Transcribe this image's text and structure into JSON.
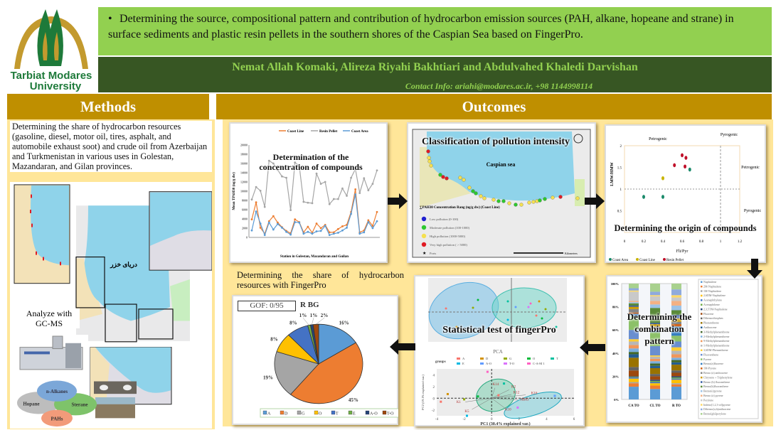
{
  "header": {
    "logo_text_line1": "Tarbiat Modares",
    "logo_text_line2": "University",
    "title": "Determining the source, compositional pattern and contribution of hydrocarbon emission sources (PAH, alkane, hopeane and strane) in surface sediments and plastic resin pellets in the southern shores of the Caspian Sea based on FingerPro.",
    "authors": "Nemat Allah Komaki, Alireza Riyahi Bakhtiari and Abdulvahed Khaledi Darvishan",
    "contact": "Contact Info: ariahi@modares.ac.ir, +98 1144998114"
  },
  "colors": {
    "title_bg": "#92d050",
    "author_bg": "#375623",
    "section_bg": "#bf8f00",
    "body_bg": "#ffe699"
  },
  "methods": {
    "heading": "Methods",
    "text": "Determining the share of hydrocarbon resources (gasoline, diesel, motor oil, tires, asphalt, and automobile exhaust soot) and crude oil from Azerbaijan and Turkmenistan in various uses in Golestan, Mazandaran, and Gilan provinces.",
    "gcms_label": "Analyze with GC-MS",
    "venn": [
      "n-Alkanes",
      "Hopane",
      "Sterane",
      "PAHs"
    ],
    "map_sea_label": "دریای خزر"
  },
  "outcomes": {
    "heading": "Outcomes",
    "concentration": {
      "caption": "Determination of the concentration of compounds",
      "chart_data": {
        "type": "line",
        "ylabel": "Mean TPAH30 (ng/g dw)",
        "xlabel": "Station in Golestan, Mazandaran and Guilan",
        "ylim": [
          0,
          20000
        ],
        "yticks": [
          0,
          2000,
          4000,
          6000,
          8000,
          10000,
          12000,
          14000,
          16000,
          18000,
          20000
        ],
        "legend_position": "top",
        "series": [
          {
            "name": "Coast Line",
            "color": "#ed7d31",
            "values": [
              3900,
              7600,
              2100,
              800,
              3500,
              4600,
              3200,
              2200,
              1400,
              900,
              3900,
              3300,
              1100,
              2300,
              1000,
              3000,
              2000,
              2700,
              1100,
              1100,
              1800,
              2400,
              2700,
              5500,
              10400,
              1100,
              1500,
              3700,
              2500,
              5500
            ]
          },
          {
            "name": "Resin Pellet",
            "color": "#a5a5a5",
            "values": [
              8200,
              10900,
              10100,
              6600,
              16600,
              16000,
              14600,
              13200,
              12900,
              5900,
              16200,
              15500,
              7700,
              7500,
              7400,
              13800,
              11600,
              12000,
              7200,
              8300,
              8300,
              10600,
              9000,
              12900,
              14800,
              9600,
              12800,
              10200,
              11600,
              14500
            ]
          },
          {
            "name": "Coast Area",
            "color": "#5b9bd5",
            "values": [
              1500,
              5600,
              3000,
              500,
              3200,
              1700,
              2900,
              2100,
              1200,
              600,
              3300,
              3200,
              800,
              1200,
              800,
              1300,
              1400,
              2500,
              500,
              800,
              1000,
              1500,
              2100,
              5100,
              9300,
              800,
              1100,
              3300,
              2000,
              3500
            ]
          }
        ]
      }
    },
    "pollution_map": {
      "caption": "Classification of pollution intensity",
      "sea_label": "Caspian sea",
      "legend_title": "∑PAH30 Concentration Rang (ng/g dw) (Coast Line)",
      "legend": [
        {
          "label": "Low pollution (0-100)",
          "color": "#1f1fd0"
        },
        {
          "label": "Moderate pollution (100-1000)",
          "color": "#2ec82e"
        },
        {
          "label": "High pollution (1000-5000)",
          "color": "#f5e050"
        },
        {
          "label": "Very high pollution ( > 5000)",
          "color": "#e01b24"
        },
        {
          "label": "Ports",
          "color": "#111111"
        }
      ],
      "scale_label": "Kilometers"
    },
    "origin": {
      "caption": "Determining the origin of compounds",
      "chart_data": {
        "type": "scatter",
        "xlabel": "Flt/Pyr",
        "ylabel": "LMW/HMW",
        "xlim": [
          0,
          1.2
        ],
        "ylim": [
          0,
          2
        ],
        "xticks": [
          0,
          0.2,
          0.4,
          0.6,
          0.8,
          1,
          1.2
        ],
        "yticks": [
          0.5,
          1,
          1.5,
          2
        ],
        "region_labels": [
          "Petrogenic",
          "Pyrogenic",
          "Petrogenic",
          "Pyrogenic"
        ],
        "legend_position": "bottom",
        "series": [
          {
            "name": "Coast Area",
            "color": "#1a8a6a",
            "points": [
              [
                0.2,
                0.82
              ],
              [
                0.4,
                0.82
              ],
              [
                0.68,
                1.45
              ]
            ]
          },
          {
            "name": "Coast Line",
            "color": "#c8b400",
            "points": [
              [
                0.4,
                1.25
              ]
            ]
          },
          {
            "name": "Resin Pellet",
            "color": "#c0102a",
            "points": [
              [
                0.52,
                1.55
              ],
              [
                0.6,
                1.78
              ],
              [
                0.64,
                1.72
              ],
              [
                0.63,
                1.52
              ]
            ]
          }
        ]
      }
    },
    "combination": {
      "caption": "Determining the combination pattern",
      "chart_data": {
        "type": "bar",
        "stacked": true,
        "categories": [
          "CA TO",
          "CL TO",
          "R TO"
        ],
        "yticks": [
          "0%",
          "20%",
          "40%",
          "60%",
          "80%",
          "100%"
        ],
        "legend_position": "right",
        "series_names": [
          "Naphtalene",
          "2M-Naphtalene",
          "1M-Naphtalene",
          "2,6DM-Naphtalene",
          "Acenaphthylene",
          "Acenaphthene",
          "2,3,5TM-Naphtalene",
          "Fluorene",
          "Dibenzothiophen",
          "Phenanthrene",
          "Anthracene",
          "3-Methylphenanthrene",
          "2-Methylphenanthrene",
          "9-Methylphenanthrene",
          "1-Methylphenanthrene",
          "3,6DM-Phenanthrene",
          "Fluoranthene",
          "Pyrene",
          "Benzo(a)fluorene",
          "1M-Pyrene",
          "Benzo (a) anthracene",
          "Chrysene + Triphenylene",
          "Benzo (b) fluoranthene",
          "Benzo(k)fluoranthene",
          "Benzo(e)pyrene",
          "Benzo (a) pyrene",
          "Perylene",
          "Indeno[1,2,3-cd]pyrene",
          "Dibenzo(a,h)anthracene",
          "Benzo[ghi]perylene"
        ],
        "series_colors": [
          "#5b9bd5",
          "#ed7d31",
          "#a5a5a5",
          "#ffc000",
          "#4472c4",
          "#70ad47",
          "#264478",
          "#9e480e",
          "#636363",
          "#997300",
          "#255e91",
          "#43682b",
          "#7cafdd",
          "#f1975a",
          "#b7b7b7",
          "#ffcd33",
          "#698ed0",
          "#8cc168",
          "#327dc2",
          "#d26012",
          "#848484",
          "#cc9a00",
          "#335aa1",
          "#5a8a39",
          "#9dc3e6",
          "#f4b183",
          "#c9c9c9",
          "#ffd966",
          "#8faadc",
          "#a9d18e"
        ],
        "values": [
          [
            11,
            3,
            1,
            3,
            1,
            0.5,
            0.5,
            5,
            3,
            8,
            3,
            2,
            3,
            3,
            3,
            2,
            8,
            12,
            2,
            1,
            3,
            2,
            1,
            2,
            1,
            1,
            8,
            1,
            2,
            4
          ],
          [
            9,
            3,
            0,
            2,
            1,
            1,
            1,
            3,
            2,
            5,
            2,
            2,
            2,
            2,
            2,
            1,
            8,
            12,
            2,
            1,
            2,
            2,
            1,
            13,
            3,
            3,
            4,
            1,
            3,
            7
          ],
          [
            11,
            2,
            1,
            3,
            1,
            1,
            1,
            3,
            2,
            5,
            2,
            2,
            2,
            3,
            3,
            3,
            5,
            5,
            8,
            2,
            2,
            3,
            3,
            4,
            4,
            4,
            3,
            2,
            5,
            5
          ]
        ]
      }
    },
    "pca": {
      "caption": "Statistical test of fingerPro",
      "title": "PCA",
      "groups_label": "groups",
      "groups": [
        {
          "name": "A",
          "color": "#f8766d"
        },
        {
          "name": "D",
          "color": "#d39200"
        },
        {
          "name": "G",
          "color": "#93aa00"
        },
        {
          "name": "O",
          "color": "#00ba38"
        },
        {
          "name": "T",
          "color": "#00c19f"
        },
        {
          "name": "E",
          "color": "#00b9e3"
        },
        {
          "name": "A-O",
          "color": "#619cff"
        },
        {
          "name": "T-O",
          "color": "#db72fb"
        },
        {
          "name": "C-A-M 1",
          "color": "#ff61c3"
        }
      ],
      "xlabel": "PC1 (30.4% explained var.)",
      "ylabel": "PC2 (19.1% explained var.)",
      "xticks": [
        "-4",
        "-2",
        "0",
        "2",
        "4",
        "6"
      ],
      "yticks": [
        "-2",
        "0",
        "2",
        "4"
      ],
      "vector_labels": [
        "K1",
        "K5",
        "K12",
        "K2",
        "K16",
        "K14",
        "HB83",
        "K10"
      ]
    },
    "share": {
      "caption": "Determining the share of hydrocarbon resources with FingerPro",
      "gof": "GOF: 0/95",
      "subtitle": "R BG",
      "chart_data": {
        "type": "pie",
        "legend_position": "bottom",
        "slices": [
          {
            "label": "A",
            "value": 16,
            "color": "#5b9bd5"
          },
          {
            "label": "D",
            "value": 45,
            "color": "#ed7d31"
          },
          {
            "label": "G",
            "value": 19,
            "color": "#a5a5a5"
          },
          {
            "label": "O",
            "value": 8,
            "color": "#ffc000"
          },
          {
            "label": "T",
            "value": 8,
            "color": "#4472c4"
          },
          {
            "label": "E",
            "value": 1,
            "color": "#70ad47"
          },
          {
            "label": "A-O",
            "value": 1,
            "color": "#264478"
          },
          {
            "label": "T-O",
            "value": 2,
            "color": "#9e480e"
          }
        ]
      }
    }
  }
}
